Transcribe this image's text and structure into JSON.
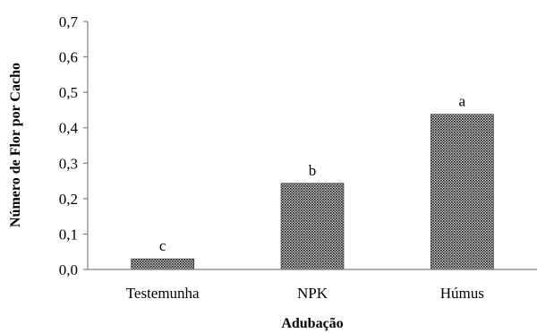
{
  "chart_data": {
    "type": "bar",
    "title": "",
    "xlabel": "Adubação",
    "ylabel": "Número de Flor por Cacho",
    "categories": [
      "Testemunha",
      "NPK",
      "Húmus"
    ],
    "values": [
      0.03,
      0.243,
      0.438
    ],
    "significance_labels": [
      "c",
      "b",
      "a"
    ],
    "ylim": [
      0,
      0.7
    ],
    "yticks": [
      0.0,
      0.1,
      0.2,
      0.3,
      0.4,
      0.5,
      0.6,
      0.7
    ],
    "ytick_labels": [
      "0,0",
      "0,1",
      "0,2",
      "0,3",
      "0,4",
      "0,5",
      "0,6",
      "0,7"
    ],
    "grid": false,
    "legend": "none",
    "bar_color": "#2b2b2b",
    "bar_pattern": "dotted-crosshatch"
  }
}
